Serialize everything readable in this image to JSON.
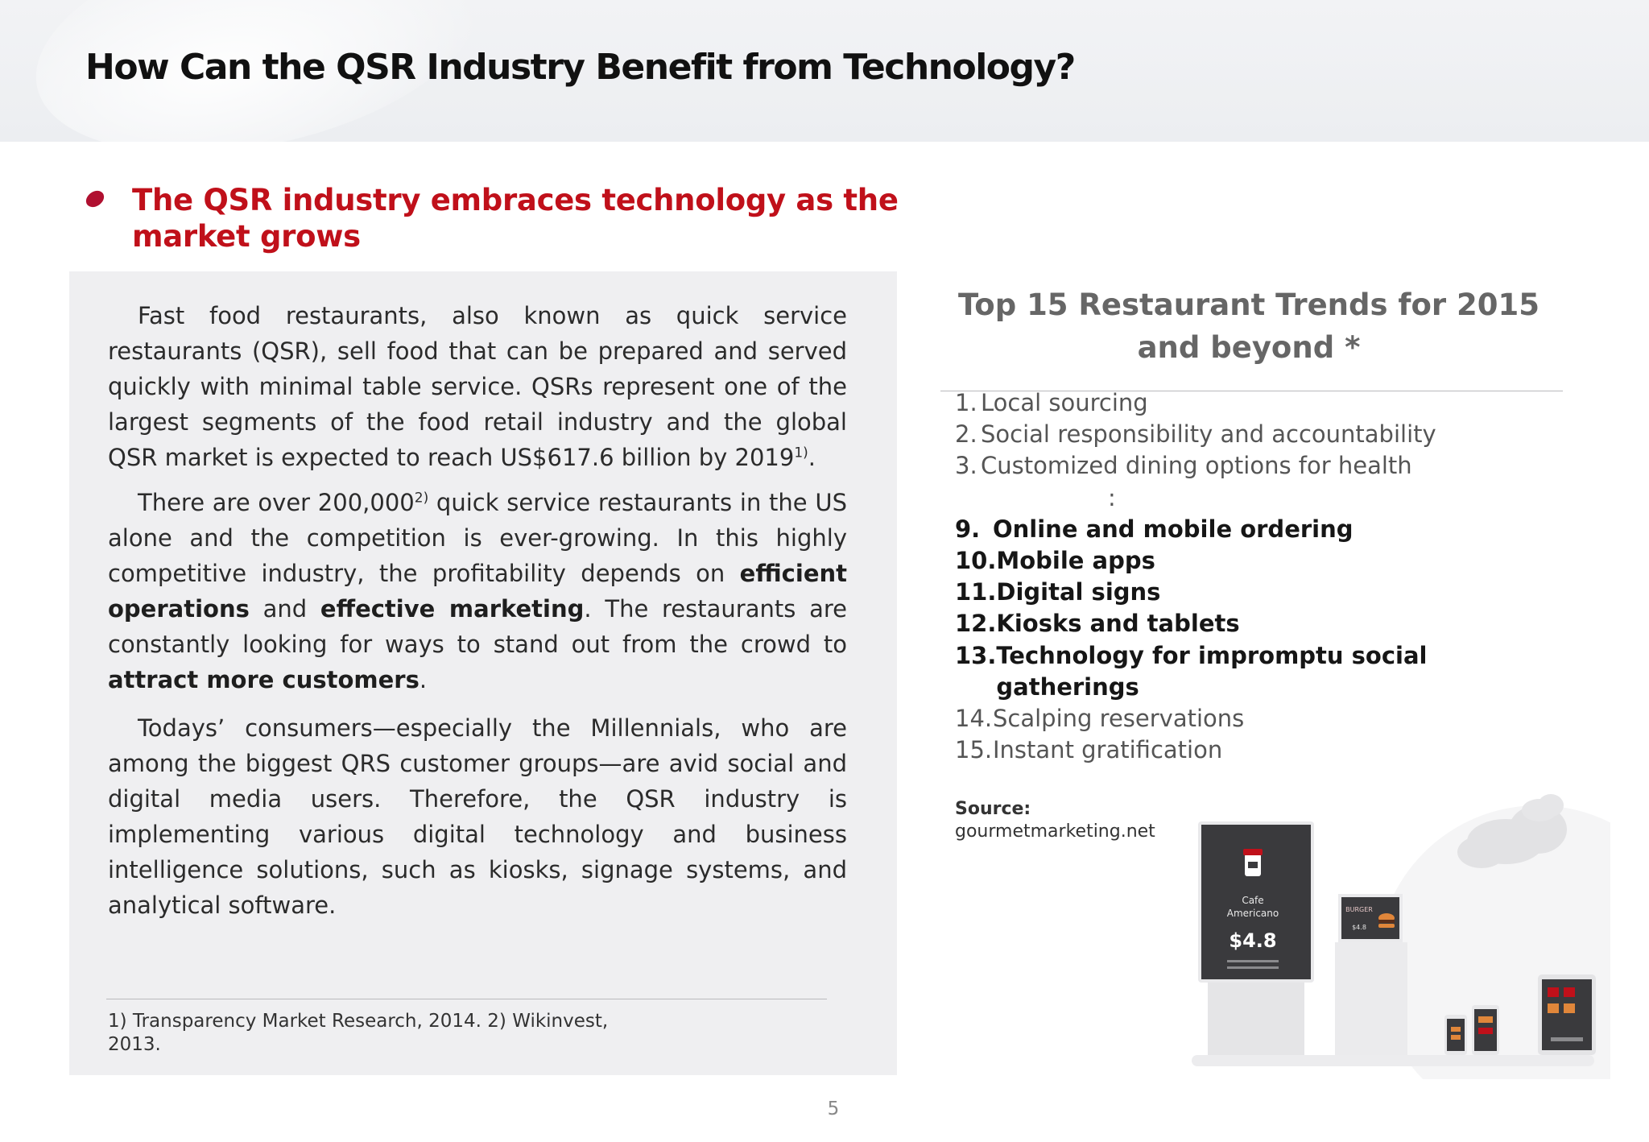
{
  "header": {
    "title": "How Can the QSR Industry Benefit from Technology?"
  },
  "section": {
    "subtitle": "The QSR industry embraces technology as the market grows"
  },
  "body": {
    "p1": {
      "text_a": "Fast food restaurants, also known as quick service restaurants (QSR),  sell food that can be prepared and served quickly with minimal table  service. QSRs represent one of the largest segments of the food retail  industry and the global QSR market is expected to reach US$617.6  billion by 2019",
      "sup": "1)",
      "text_b": "."
    },
    "p2": {
      "text_a": "There are over 200,000",
      "sup": "2)",
      "text_b": " quick service restaurants in the US alone  and the competition is ever-growing. In this highly competitive industry,  the profitability depends on ",
      "bold_1": "efficient operations",
      "text_c": " and ",
      "bold_2": "effective  marketing",
      "text_d": ". The restaurants are constantly looking for ways to stand out  from the crowd to ",
      "bold_3": "attract more customers",
      "text_e": "."
    },
    "p3": {
      "text": "Todays’ consumers—especially the Millennials, who are among the  biggest QRS customer groups—are avid social and digital media users.  Therefore, the QSR industry is implementing various digital technology  and business intelligence solutions, such as kiosks, signage systems, and analytical software."
    },
    "footnote": "1) Transparency Market Research, 2014. 2) Wikinvest, 2013."
  },
  "trends": {
    "title": "Top 15 Restaurant Trends for 2015 and beyond *",
    "items_top": [
      {
        "num": "1.",
        "text": "Local sourcing"
      },
      {
        "num": "2.",
        "text": "Social responsibility and accountability"
      },
      {
        "num": "3.",
        "text": "Customized dining options for health"
      }
    ],
    "ellipsis": ":",
    "items_bold": [
      {
        "num": "9.",
        "text": "Online and mobile ordering"
      },
      {
        "num": "10.",
        "text": "Mobile apps"
      },
      {
        "num": "11.",
        "text": "Digital signs"
      },
      {
        "num": "12.",
        "text": "Kiosks and tablets"
      },
      {
        "num": "13.",
        "text": "Technology for impromptu social gatherings"
      }
    ],
    "items_bottom": [
      {
        "num": "14.",
        "text": "Scalping reservations"
      },
      {
        "num": "15.",
        "text": "Instant gratification"
      }
    ],
    "source_label": "Source:",
    "source_value": "gourmetmarketing.net"
  },
  "illustration": {
    "kiosk_line1": "Cafe",
    "kiosk_line2": "Americano",
    "kiosk_price": "$4.8",
    "board_text": "BURGER",
    "board_price": "$4.8"
  },
  "page_number": "5",
  "colors": {
    "accent_red": "#c0101a",
    "panel_gray": "#efeff1"
  }
}
